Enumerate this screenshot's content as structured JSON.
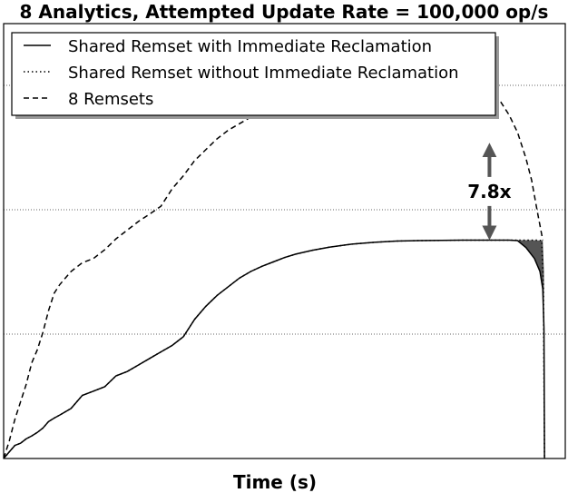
{
  "chart_data": {
    "type": "line",
    "title": "8 Analytics, Attempted Update Rate = 100,000 op/s",
    "xlabel": "Time (s)",
    "ylabel": "",
    "xlim": [
      0,
      100
    ],
    "ylim": [
      0,
      100
    ],
    "grid": "horizontal dotted",
    "legend_position": "top-left",
    "colors": {
      "lines": "#000000",
      "arrow": "#555555",
      "fill": "#555555",
      "grid": "#666666"
    },
    "annotation": {
      "text": "7.8x",
      "x": 86.5,
      "y_from": 50.2,
      "y_to": 72.6
    },
    "series": [
      {
        "name": "Shared Remset with Immediate Reclamation",
        "style": "solid",
        "x": [
          0,
          1,
          2,
          3,
          4,
          5,
          6,
          7,
          8,
          9,
          10,
          12,
          14,
          16,
          18,
          20,
          22,
          24,
          26,
          28,
          30,
          32,
          34,
          36,
          38,
          40,
          42,
          44,
          46,
          48,
          50,
          52,
          55,
          58,
          62,
          66,
          70,
          74,
          78,
          82,
          85,
          88,
          90,
          91.5,
          93,
          94.5,
          95.5,
          96,
          96.2,
          96.3
        ],
        "y": [
          0,
          1.5,
          3,
          3.5,
          4.5,
          5.2,
          6,
          7,
          8.5,
          9.3,
          10,
          11.5,
          14.5,
          15.5,
          16.5,
          19,
          20,
          21.5,
          23,
          24.5,
          26,
          28,
          32,
          35,
          37.5,
          39.5,
          41.5,
          43,
          44.2,
          45.2,
          46.2,
          47,
          47.9,
          48.6,
          49.3,
          49.7,
          50,
          50.1,
          50.15,
          50.2,
          50.2,
          50.2,
          50.2,
          50.1,
          48.5,
          46,
          43,
          39,
          30,
          0
        ]
      },
      {
        "name": "Shared Remset without Immediate Reclamation",
        "style": "dotted",
        "x": [
          0,
          1,
          2,
          3,
          4,
          5,
          6,
          7,
          8,
          9,
          10,
          12,
          14,
          16,
          18,
          20,
          22,
          24,
          26,
          28,
          30,
          32,
          34,
          36,
          38,
          40,
          42,
          44,
          46,
          48,
          50,
          52,
          55,
          58,
          62,
          66,
          70,
          74,
          78,
          82,
          85,
          88,
          90,
          92,
          94,
          95,
          95.8,
          96.1,
          96.3
        ],
        "y": [
          0,
          1.5,
          3,
          3.5,
          4.5,
          5.2,
          6,
          7,
          8.5,
          9.3,
          10,
          11.5,
          14.5,
          15.5,
          16.5,
          19,
          20,
          21.5,
          23,
          24.5,
          26,
          28,
          32,
          35,
          37.5,
          39.5,
          41.5,
          43,
          44.2,
          45.2,
          46.2,
          47,
          47.9,
          48.6,
          49.3,
          49.7,
          50,
          50.1,
          50.15,
          50.2,
          50.2,
          50.2,
          50.2,
          50.2,
          50.2,
          50.2,
          50.1,
          40,
          0
        ]
      },
      {
        "name": "8 Remsets",
        "style": "dashed",
        "x": [
          0,
          1,
          2,
          3,
          4,
          5,
          6,
          7,
          8,
          9,
          10,
          12,
          14,
          16,
          18,
          20,
          22,
          24,
          26,
          28,
          30,
          32,
          34,
          36,
          38,
          40,
          42,
          44,
          46,
          48,
          50,
          52,
          55,
          58,
          62,
          66,
          70,
          74,
          78,
          82,
          85,
          87,
          88.5,
          90,
          91.5,
          93,
          94,
          95,
          96
        ],
        "y": [
          0,
          4,
          9,
          13,
          17,
          22,
          25,
          29,
          34,
          38,
          40,
          43,
          45,
          46,
          48,
          50.5,
          52.5,
          54.5,
          56.2,
          58,
          62,
          65,
          68.5,
          71,
          73.5,
          75.5,
          77,
          78.5,
          79.8,
          80.8,
          81.6,
          82.3,
          83,
          83.6,
          84.2,
          84.6,
          84.9,
          85,
          85.1,
          85.15,
          85.1,
          84,
          82,
          79,
          75,
          69,
          64,
          57,
          50.2
        ]
      }
    ]
  }
}
